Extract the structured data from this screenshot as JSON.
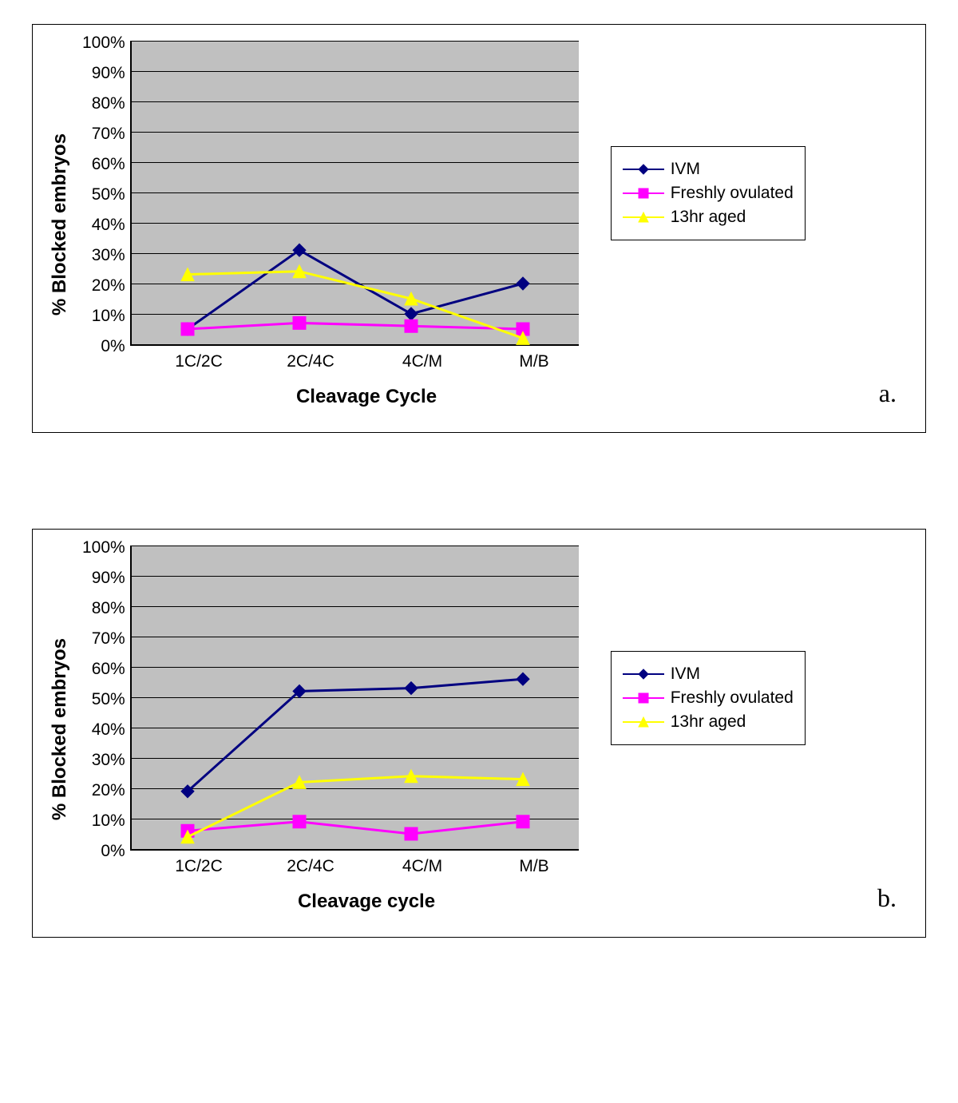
{
  "charts": [
    {
      "id": "chart-a",
      "ylabel": "% Blocked embryos",
      "xlabel": "Cleavage Cycle",
      "panel_label": "a.",
      "plot_bg": "#c0c0c0",
      "grid_color": "#000000",
      "axis_color": "#000000",
      "ylim": [
        0,
        100
      ],
      "yticks": [
        "100%",
        "90%",
        "80%",
        "70%",
        "60%",
        "50%",
        "40%",
        "30%",
        "20%",
        "10%",
        "0%"
      ],
      "categories": [
        "1C/2C",
        "2C/4C",
        "4C/M",
        "M/B"
      ],
      "line_width": 3,
      "marker_size": 8,
      "series": [
        {
          "name": "IVM",
          "color": "#000080",
          "marker": "diamond",
          "values": [
            5,
            31,
            10,
            20
          ]
        },
        {
          "name": "Freshly ovulated",
          "color": "#ff00ff",
          "marker": "square",
          "values": [
            5,
            7,
            6,
            5
          ]
        },
        {
          "name": "13hr aged",
          "color": "#ffff00",
          "marker": "triangle",
          "values": [
            23,
            24,
            15,
            2
          ]
        }
      ],
      "title_fontsize": 24,
      "tick_fontsize": 21,
      "legend_fontsize": 21
    },
    {
      "id": "chart-b",
      "ylabel": "% Blocked embryos",
      "xlabel": "Cleavage cycle",
      "panel_label": "b.",
      "plot_bg": "#c0c0c0",
      "grid_color": "#000000",
      "axis_color": "#000000",
      "ylim": [
        0,
        100
      ],
      "yticks": [
        "100%",
        "90%",
        "80%",
        "70%",
        "60%",
        "50%",
        "40%",
        "30%",
        "20%",
        "10%",
        "0%"
      ],
      "categories": [
        "1C/2C",
        "2C/4C",
        "4C/M",
        "M/B"
      ],
      "line_width": 3,
      "marker_size": 8,
      "series": [
        {
          "name": "IVM",
          "color": "#000080",
          "marker": "diamond",
          "values": [
            19,
            52,
            53,
            56
          ]
        },
        {
          "name": "Freshly ovulated",
          "color": "#ff00ff",
          "marker": "square",
          "values": [
            6,
            9,
            5,
            9
          ]
        },
        {
          "name": "13hr aged",
          "color": "#ffff00",
          "marker": "triangle",
          "values": [
            4,
            22,
            24,
            23
          ]
        }
      ],
      "title_fontsize": 24,
      "tick_fontsize": 21,
      "legend_fontsize": 21
    }
  ]
}
